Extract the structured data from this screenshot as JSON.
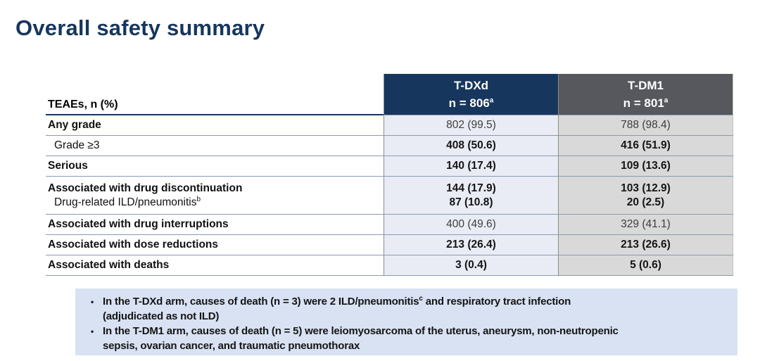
{
  "title": "Overall safety summary",
  "colors": {
    "title_color": "#17365d",
    "header_tdxd_bg": "#17365d",
    "header_tdm1_bg": "#56585e",
    "cell_tdxd_bg": "#e9ecf5",
    "cell_tdm1_bg": "#d9d9d9",
    "footnote_bg": "#d9e2f3"
  },
  "table": {
    "row_header": "TEAEs, n (%)",
    "columns": [
      {
        "name": "T-DXd",
        "n_label": "n = 806",
        "sup": "a"
      },
      {
        "name": "T-DM1",
        "n_label": "n = 801",
        "sup": "a"
      }
    ],
    "rows": [
      {
        "labels": [
          {
            "text": "Any grade",
            "bold": true,
            "indent": false
          }
        ],
        "tdxd": [
          "802 (99.5)"
        ],
        "tdm1": [
          "788 (98.4)"
        ],
        "values_bold": false
      },
      {
        "labels": [
          {
            "text": "Grade ≥3",
            "bold": false,
            "indent": true
          }
        ],
        "tdxd": [
          "408 (50.6)"
        ],
        "tdm1": [
          "416 (51.9)"
        ],
        "values_bold": true
      },
      {
        "labels": [
          {
            "text": "Serious",
            "bold": true,
            "indent": false
          }
        ],
        "tdxd": [
          "140 (17.4)"
        ],
        "tdm1": [
          "109 (13.6)"
        ],
        "values_bold": true
      },
      {
        "labels": [
          {
            "text": "Associated with drug discontinuation",
            "bold": true,
            "indent": false
          },
          {
            "text": "Drug-related ILD/pneumonitis",
            "sup": "b",
            "bold": false,
            "indent": true
          }
        ],
        "tdxd": [
          "144 (17.9)",
          "87 (10.8)"
        ],
        "tdm1": [
          "103 (12.9)",
          "20 (2.5)"
        ],
        "values_bold": true
      },
      {
        "labels": [
          {
            "text": "Associated with drug interruptions",
            "bold": true,
            "indent": false
          }
        ],
        "tdxd": [
          "400 (49.6)"
        ],
        "tdm1": [
          "329 (41.1)"
        ],
        "values_bold": false
      },
      {
        "labels": [
          {
            "text": "Associated with dose reductions",
            "bold": true,
            "indent": false
          }
        ],
        "tdxd": [
          "213 (26.4)"
        ],
        "tdm1": [
          "213 (26.6)"
        ],
        "values_bold": true
      },
      {
        "labels": [
          {
            "text": "Associated with deaths",
            "bold": true,
            "indent": false
          }
        ],
        "tdxd": [
          "3 (0.4)"
        ],
        "tdm1": [
          "5 (0.6)"
        ],
        "values_bold": true
      }
    ]
  },
  "footnote_bullet": "•",
  "footnotes": [
    {
      "pre": "In the T-DXd arm, causes of death (n = 3) were 2 ILD/pneumonitis",
      "sup": "c",
      "post": " and respiratory tract infection (adjudicated as not ILD)"
    },
    {
      "pre": "In the T-DM1 arm, causes of death (n = 5) were leiomyosarcoma of the uterus, aneurysm, non-neutropenic sepsis, ovarian cancer, and traumatic pneumothorax",
      "sup": "",
      "post": ""
    }
  ]
}
